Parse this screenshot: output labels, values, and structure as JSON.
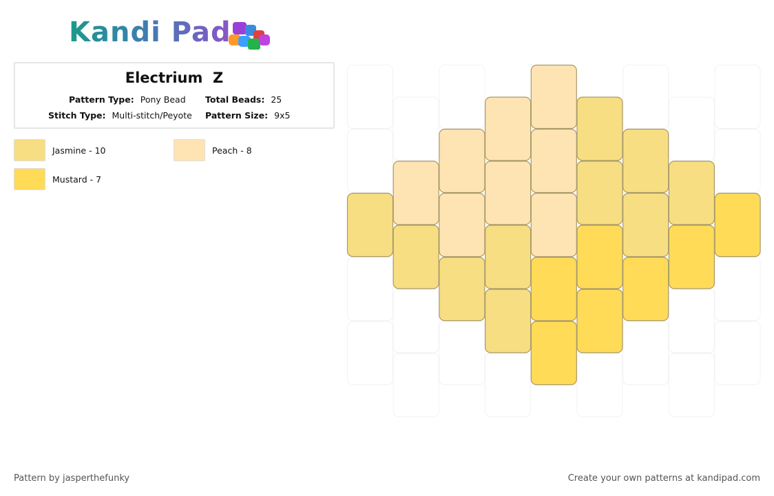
{
  "header": {
    "logo": "Kandi Pad"
  },
  "info": {
    "title": "Electrium  Z",
    "pattern_type_label": "Pattern Type:",
    "pattern_type": "Pony Bead",
    "total_beads_label": "Total Beads:",
    "total_beads": "25",
    "stitch_type_label": "Stitch Type:",
    "stitch_type": "Multi-stitch/Peyote",
    "pattern_size_label": "Pattern Size:",
    "pattern_size": "9x5"
  },
  "legend": [
    {
      "label": "Jasmine - 10",
      "color": "#f7de82"
    },
    {
      "label": "Peach - 8",
      "color": "#ffe4b3"
    },
    {
      "label": "Mustard - 7",
      "color": "#ffdb58"
    }
  ],
  "beads": [
    [
      null,
      null,
      "#f7de82",
      null,
      null
    ],
    [
      null,
      "#ffe4b3",
      "#f7de82",
      null,
      null
    ],
    [
      null,
      "#ffe4b3",
      "#ffe4b3",
      "#f7de82",
      null
    ],
    [
      "#ffe4b3",
      "#ffe4b3",
      "#f7de82",
      "#f7de82",
      null
    ],
    [
      "#ffe4b3",
      "#ffe4b3",
      "#ffe4b3",
      "#ffdb58",
      "#ffdb58"
    ],
    [
      "#f7de82",
      "#f7de82",
      "#ffdb58",
      "#ffdb58",
      null
    ],
    [
      null,
      "#f7de82",
      "#f7de82",
      "#ffdb58",
      null
    ],
    [
      null,
      "#f7de82",
      "#ffdb58",
      null,
      null
    ],
    [
      null,
      null,
      "#ffdb58",
      null,
      null
    ]
  ],
  "footer": {
    "author": "Pattern by jasperthefunky",
    "credit": "Create your own patterns at kandipad.com"
  }
}
